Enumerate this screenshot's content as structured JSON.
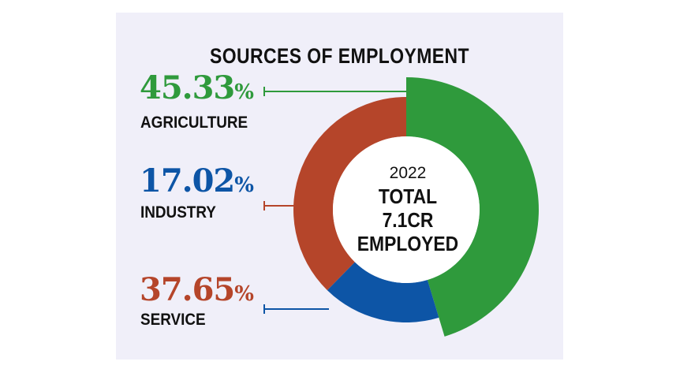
{
  "chart_data": {
    "type": "pie",
    "title": "SOURCES  OF EMPLOYMENT",
    "center_text": {
      "year": "2022",
      "line1": "TOTAL",
      "line2": "7.1CR",
      "line3": "EMPLOYED"
    },
    "slices": [
      {
        "label": "AGRICULTURE",
        "value": 45.33,
        "value_text": "45.33",
        "color": "#2f9a3c",
        "text_color": "#2f9a3c"
      },
      {
        "label": "INDUSTRY",
        "value": 17.02,
        "value_text": "17.02",
        "color": "#0d55a6",
        "text_color": "#0d55a6"
      },
      {
        "label": "SERVICE",
        "value": 37.65,
        "value_text": "37.65",
        "color": "#b5452a",
        "text_color": "#b5452a"
      }
    ],
    "percent_sign": "%"
  }
}
